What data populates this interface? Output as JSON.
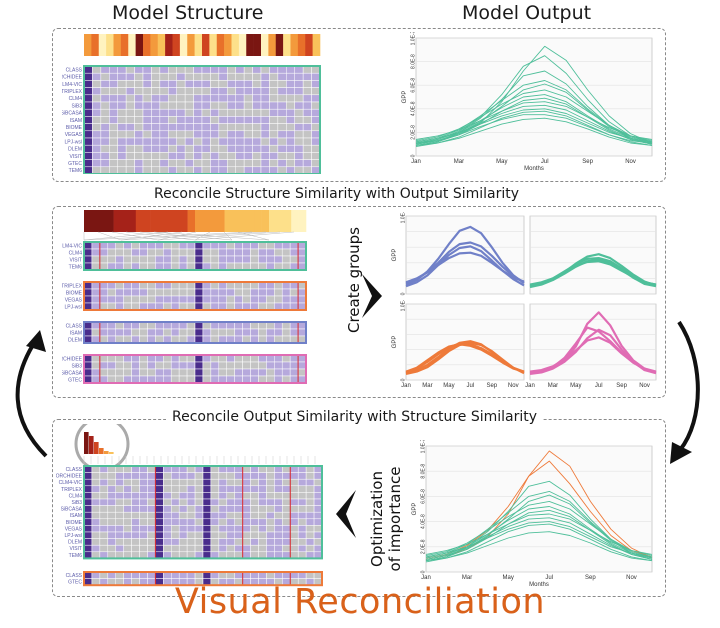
{
  "titles": {
    "model_structure": "Model Structure",
    "model_output": "Model Output",
    "reconcile_structure": "Reconcile Structure Similarity with Output Similarity",
    "reconcile_output": "Reconcile Output Similarity with Structure Similarity",
    "create_groups": "Create groups",
    "optimization_line1": "Optimization",
    "optimization_line2": "of importance",
    "footer": "Visual Reconciliation"
  },
  "structure_rows": [
    "CLASS",
    "ORCHIDEE",
    "CLM4-VIC",
    "TRIPLEX",
    "CLM4",
    "SiB3",
    "SiBCASA",
    "ISAM",
    "BIOME",
    "VEGAS",
    "LPJ-wsl",
    "DLEM",
    "VISIT",
    "GTEC",
    "TEM6"
  ],
  "groups": [
    {
      "rows": [
        "CLM4-VIC",
        "CLM4",
        "VISIT",
        "TEM6"
      ],
      "color": "#7a86c6"
    },
    {
      "rows": [
        "TRIPLEX",
        "BIOME",
        "VEGAS",
        "LPJ-wsl"
      ],
      "color": "#e87940"
    },
    {
      "rows": [
        "CLASS",
        "ISAM",
        "DLEM"
      ],
      "color": "#6f7fc0"
    },
    {
      "rows": [
        "ORCHIDEE",
        "SiB3",
        "SiBCASA",
        "GTEC"
      ],
      "color": "#e070b0"
    }
  ],
  "bottom_rows": [
    "CLASS",
    "ORCHIDEE",
    "CLM4-VIC",
    "TRIPLEX",
    "CLM4",
    "SiB3",
    "SiBCASA",
    "ISAM",
    "BIOME",
    "VEGAS",
    "LPJ-wsl",
    "DLEM",
    "VISIT",
    "TEM6"
  ],
  "bottom_group2_rows": [
    "CLASS",
    "GTEC"
  ],
  "colors": {
    "teal": "#4fbf9a",
    "blue": "#7080c8",
    "orange": "#ee7a3a",
    "pink": "#e06cb4",
    "purple_cell": "#b6a9dc",
    "gray_cell": "#c4c4c4",
    "dark_purple": "#4a2d8c",
    "footer": "#d9611a"
  },
  "chart_data": [
    {
      "type": "line",
      "title": "",
      "ylabel": "GPP",
      "xlabel": "Months",
      "x": [
        1,
        2,
        3,
        4,
        5,
        6,
        7,
        8,
        9,
        10,
        11,
        12
      ],
      "xticks": [
        "Jan",
        "Mar",
        "May",
        "Jul",
        "Sep",
        "Nov"
      ],
      "yticks": [
        "0",
        "2.0E-8",
        "4.0E-8",
        "6.0E-8",
        "8.0E-8",
        "1.0E-7"
      ],
      "ylim": [
        0,
        1e-07
      ],
      "series": [
        {
          "values": [
            1e-08,
            1.3e-08,
            1.8e-08,
            2.8e-08,
            4.6e-08,
            7.2e-08,
            9.3e-08,
            8.1e-08,
            5.6e-08,
            3.4e-08,
            1.9e-08,
            1.1e-08
          ]
        },
        {
          "values": [
            1.1e-08,
            1.4e-08,
            2.1e-08,
            3.3e-08,
            5.2e-08,
            7.6e-08,
            8.5e-08,
            7e-08,
            4.8e-08,
            2.9e-08,
            1.7e-08,
            1.2e-08
          ]
        },
        {
          "values": [
            9e-09,
            1.2e-08,
            2e-08,
            3.2e-08,
            4.8e-08,
            6.8e-08,
            7.2e-08,
            6.1e-08,
            4.2e-08,
            2.6e-08,
            1.5e-08,
            1e-08
          ]
        },
        {
          "values": [
            1.2e-08,
            1.5e-08,
            2.2e-08,
            3.4e-08,
            4.7e-08,
            6e-08,
            6.4e-08,
            5.6e-08,
            4e-08,
            2.6e-08,
            1.6e-08,
            1.2e-08
          ]
        },
        {
          "values": [
            1e-08,
            1.3e-08,
            1.9e-08,
            2.9e-08,
            4.2e-08,
            5.6e-08,
            6.1e-08,
            5.4e-08,
            3.9e-08,
            2.5e-08,
            1.5e-08,
            1.1e-08
          ]
        },
        {
          "values": [
            1.3e-08,
            1.6e-08,
            2.3e-08,
            3.3e-08,
            4.4e-08,
            5.3e-08,
            5.6e-08,
            5e-08,
            3.8e-08,
            2.6e-08,
            1.7e-08,
            1.3e-08
          ]
        },
        {
          "values": [
            1.1e-08,
            1.4e-08,
            2e-08,
            3e-08,
            4.1e-08,
            5e-08,
            5.2e-08,
            4.6e-08,
            3.4e-08,
            2.3e-08,
            1.5e-08,
            1.1e-08
          ]
        },
        {
          "values": [
            9e-09,
            1.2e-08,
            1.8e-08,
            2.7e-08,
            3.8e-08,
            4.7e-08,
            4.9e-08,
            4.4e-08,
            3.3e-08,
            2.2e-08,
            1.4e-08,
            1e-08
          ]
        },
        {
          "values": [
            1.4e-08,
            1.7e-08,
            2.2e-08,
            3e-08,
            3.8e-08,
            4.5e-08,
            4.6e-08,
            4.2e-08,
            3.3e-08,
            2.4e-08,
            1.7e-08,
            1.4e-08
          ]
        },
        {
          "values": [
            1e-08,
            1.3e-08,
            1.9e-08,
            2.8e-08,
            3.6e-08,
            4.2e-08,
            4.3e-08,
            3.9e-08,
            3e-08,
            2.1e-08,
            1.4e-08,
            1e-08
          ]
        },
        {
          "values": [
            1.2e-08,
            1.5e-08,
            2e-08,
            2.7e-08,
            3.4e-08,
            3.9e-08,
            4e-08,
            3.6e-08,
            2.8e-08,
            2e-08,
            1.5e-08,
            1.2e-08
          ]
        },
        {
          "values": [
            8e-09,
            1.1e-08,
            1.6e-08,
            2.4e-08,
            3.2e-08,
            3.7e-08,
            3.8e-08,
            3.4e-08,
            2.6e-08,
            1.8e-08,
            1.2e-08,
            9e-09
          ]
        },
        {
          "values": [
            1.1e-08,
            1.3e-08,
            1.8e-08,
            2.5e-08,
            3.1e-08,
            3.5e-08,
            3.5e-08,
            3.2e-08,
            2.5e-08,
            1.8e-08,
            1.3e-08,
            1.1e-08
          ]
        },
        {
          "values": [
            9e-09,
            1.1e-08,
            1.5e-08,
            2.1e-08,
            2.7e-08,
            3.1e-08,
            3.2e-08,
            2.9e-08,
            2.3e-08,
            1.6e-08,
            1.1e-08,
            9e-09
          ]
        }
      ]
    },
    {
      "type": "line",
      "ylabel": "GPP",
      "yticks": [
        "0",
        "1.0E-7"
      ],
      "ylim": [
        0,
        1e-07
      ],
      "x": [
        1,
        2,
        3,
        4,
        5,
        6,
        7,
        8,
        9,
        10,
        11,
        12
      ],
      "series": [
        {
          "values": [
            1.2e-08,
            1.8e-08,
            2.9e-08,
            4.5e-08,
            6.4e-08,
            8.1e-08,
            8.6e-08,
            7.8e-08,
            6e-08,
            4e-08,
            2.4e-08,
            1.4e-08
          ]
        },
        {
          "values": [
            1.4e-08,
            1.9e-08,
            2.8e-08,
            4e-08,
            5.4e-08,
            6.4e-08,
            6.6e-08,
            6.1e-08,
            4.9e-08,
            3.5e-08,
            2.3e-08,
            1.5e-08
          ]
        },
        {
          "values": [
            1e-08,
            1.5e-08,
            2.4e-08,
            3.7e-08,
            5e-08,
            5.9e-08,
            6.1e-08,
            5.5e-08,
            4.3e-08,
            3e-08,
            1.9e-08,
            1.1e-08
          ]
        },
        {
          "values": [
            1.5e-08,
            2e-08,
            2.8e-08,
            3.7e-08,
            4.6e-08,
            5.2e-08,
            5.3e-08,
            4.9e-08,
            4e-08,
            3e-08,
            2.1e-08,
            1.6e-08
          ]
        }
      ]
    },
    {
      "type": "line",
      "x": [
        1,
        2,
        3,
        4,
        5,
        6,
        7,
        8,
        9,
        10,
        11,
        12
      ],
      "ylim": [
        0,
        1e-07
      ],
      "series": [
        {
          "values": [
            1e-08,
            1.3e-08,
            1.9e-08,
            2.8e-08,
            3.9e-08,
            4.8e-08,
            5.1e-08,
            4.6e-08,
            3.6e-08,
            2.5e-08,
            1.6e-08,
            1.1e-08
          ]
        },
        {
          "values": [
            1.1e-08,
            1.4e-08,
            2e-08,
            2.9e-08,
            3.8e-08,
            4.5e-08,
            4.6e-08,
            4.2e-08,
            3.3e-08,
            2.3e-08,
            1.5e-08,
            1.2e-08
          ]
        },
        {
          "values": [
            9e-09,
            1.2e-08,
            1.8e-08,
            2.6e-08,
            3.5e-08,
            4.2e-08,
            4.4e-08,
            4e-08,
            3.1e-08,
            2.1e-08,
            1.3e-08,
            1e-08
          ]
        },
        {
          "values": [
            1.2e-08,
            1.5e-08,
            2e-08,
            2.8e-08,
            3.6e-08,
            4.1e-08,
            4.2e-08,
            3.8e-08,
            3e-08,
            2.2e-08,
            1.5e-08,
            1.2e-08
          ]
        }
      ]
    },
    {
      "type": "line",
      "ylabel": "GPP",
      "yticks": [
        "0",
        "1.0E-7"
      ],
      "ylim": [
        0,
        1e-07
      ],
      "xticks": [
        "Jan",
        "Mar",
        "May",
        "Jul",
        "Sep",
        "Nov"
      ],
      "x": [
        1,
        2,
        3,
        4,
        5,
        6,
        7,
        8,
        9,
        10,
        11,
        12
      ],
      "series": [
        {
          "values": [
            9e-09,
            1.3e-08,
            2e-08,
            3e-08,
            4.1e-08,
            4.9e-08,
            5.1e-08,
            4.7e-08,
            3.7e-08,
            2.6e-08,
            1.6e-08,
            1e-08
          ]
        },
        {
          "values": [
            1e-08,
            1.5e-08,
            2.4e-08,
            3.4e-08,
            4.3e-08,
            4.8e-08,
            4.7e-08,
            4.2e-08,
            3.4e-08,
            2.5e-08,
            1.6e-08,
            1.1e-08
          ]
        },
        {
          "values": [
            8e-09,
            1.1e-08,
            1.7e-08,
            2.7e-08,
            3.8e-08,
            4.6e-08,
            4.9e-08,
            4.6e-08,
            3.8e-08,
            2.7e-08,
            1.6e-08,
            9e-09
          ]
        },
        {
          "values": [
            1.1e-08,
            1.6e-08,
            2.6e-08,
            3.6e-08,
            4.4e-08,
            4.7e-08,
            4.5e-08,
            4e-08,
            3.2e-08,
            2.3e-08,
            1.5e-08,
            1.1e-08
          ]
        }
      ]
    },
    {
      "type": "line",
      "xticks": [
        "Jan",
        "Mar",
        "May",
        "Jul",
        "Sep",
        "Nov"
      ],
      "ylim": [
        0,
        1e-07
      ],
      "x": [
        1,
        2,
        3,
        4,
        5,
        6,
        7,
        8,
        9,
        10,
        11,
        12
      ],
      "series": [
        {
          "values": [
            9e-09,
            1.1e-08,
            1.6e-08,
            2.6e-08,
            4.4e-08,
            7.4e-08,
            8.9e-08,
            7.2e-08,
            4.5e-08,
            2.6e-08,
            1.5e-08,
            1e-08
          ]
        },
        {
          "values": [
            1e-08,
            1.2e-08,
            1.7e-08,
            2.9e-08,
            4.8e-08,
            6.9e-08,
            6.4e-08,
            5.1e-08,
            3.6e-08,
            2.3e-08,
            1.4e-08,
            1e-08
          ]
        },
        {
          "values": [
            8e-09,
            1e-08,
            1.5e-08,
            2.4e-08,
            3.7e-08,
            5.5e-08,
            6.6e-08,
            5.9e-08,
            4e-08,
            2.4e-08,
            1.3e-08,
            9e-09
          ]
        },
        {
          "values": [
            1.1e-08,
            1.3e-08,
            1.8e-08,
            2.7e-08,
            3.9e-08,
            5.2e-08,
            5.6e-08,
            4.9e-08,
            3.5e-08,
            2.3e-08,
            1.5e-08,
            1.1e-08
          ]
        }
      ]
    },
    {
      "type": "line",
      "ylabel": "GPP",
      "xlabel": "Months",
      "xticks": [
        "Jan",
        "Mar",
        "May",
        "Jul",
        "Sep",
        "Nov"
      ],
      "yticks": [
        "0",
        "2.0E-8",
        "4.0E-8",
        "6.0E-8",
        "8.0E-8",
        "1.0E-7"
      ],
      "ylim": [
        0,
        1e-07
      ],
      "x": [
        1,
        2,
        3,
        4,
        5,
        6,
        7,
        8,
        9,
        10,
        11,
        12
      ],
      "series": [
        {
          "values": [
            1e-08,
            1.3e-08,
            1.8e-08,
            2.8e-08,
            4.6e-08,
            7.6e-08,
            9.6e-08,
            8.4e-08,
            5.6e-08,
            3.4e-08,
            1.9e-08,
            1.1e-08
          ],
          "highlight": true
        },
        {
          "values": [
            1.1e-08,
            1.4e-08,
            2.1e-08,
            3.3e-08,
            5.2e-08,
            7.6e-08,
            8.8e-08,
            7e-08,
            4.8e-08,
            2.9e-08,
            1.7e-08,
            1.2e-08
          ],
          "highlight": true
        },
        {
          "values": [
            9e-09,
            1.2e-08,
            2e-08,
            3.2e-08,
            4.8e-08,
            6.8e-08,
            7.2e-08,
            6.1e-08,
            4.2e-08,
            2.6e-08,
            1.5e-08,
            1e-08
          ]
        },
        {
          "values": [
            1.2e-08,
            1.5e-08,
            2.2e-08,
            3.4e-08,
            4.7e-08,
            6e-08,
            6.4e-08,
            5.6e-08,
            4e-08,
            2.6e-08,
            1.6e-08,
            1.2e-08
          ]
        },
        {
          "values": [
            1e-08,
            1.3e-08,
            1.9e-08,
            2.9e-08,
            4.2e-08,
            5.6e-08,
            6.1e-08,
            5.4e-08,
            3.9e-08,
            2.5e-08,
            1.5e-08,
            1.1e-08
          ]
        },
        {
          "values": [
            1.3e-08,
            1.6e-08,
            2.3e-08,
            3.3e-08,
            4.4e-08,
            5.3e-08,
            5.6e-08,
            5e-08,
            3.8e-08,
            2.6e-08,
            1.7e-08,
            1.3e-08
          ]
        },
        {
          "values": [
            1.1e-08,
            1.4e-08,
            2e-08,
            3e-08,
            4.1e-08,
            5e-08,
            5.2e-08,
            4.6e-08,
            3.4e-08,
            2.3e-08,
            1.5e-08,
            1.1e-08
          ]
        },
        {
          "values": [
            9e-09,
            1.2e-08,
            1.8e-08,
            2.7e-08,
            3.8e-08,
            4.7e-08,
            4.9e-08,
            4.4e-08,
            3.3e-08,
            2.2e-08,
            1.4e-08,
            1e-08
          ]
        },
        {
          "values": [
            1.4e-08,
            1.7e-08,
            2.2e-08,
            3e-08,
            3.8e-08,
            4.5e-08,
            4.6e-08,
            4.2e-08,
            3.3e-08,
            2.4e-08,
            1.7e-08,
            1.4e-08
          ]
        },
        {
          "values": [
            1e-08,
            1.3e-08,
            1.9e-08,
            2.8e-08,
            3.6e-08,
            4.2e-08,
            4.3e-08,
            3.9e-08,
            3e-08,
            2.1e-08,
            1.4e-08,
            1e-08
          ]
        },
        {
          "values": [
            1.2e-08,
            1.5e-08,
            2e-08,
            2.7e-08,
            3.4e-08,
            3.9e-08,
            4e-08,
            3.6e-08,
            2.8e-08,
            2e-08,
            1.5e-08,
            1.2e-08
          ]
        },
        {
          "values": [
            8e-09,
            1.1e-08,
            1.6e-08,
            2.4e-08,
            3.2e-08,
            3.7e-08,
            3.8e-08,
            3.4e-08,
            2.6e-08,
            1.8e-08,
            1.2e-08,
            9e-09
          ]
        },
        {
          "values": [
            9e-09,
            1.1e-08,
            1.5e-08,
            2.1e-08,
            2.7e-08,
            3.1e-08,
            3.2e-08,
            2.9e-08,
            2.3e-08,
            1.6e-08,
            1.1e-08,
            9e-09
          ]
        }
      ]
    }
  ]
}
